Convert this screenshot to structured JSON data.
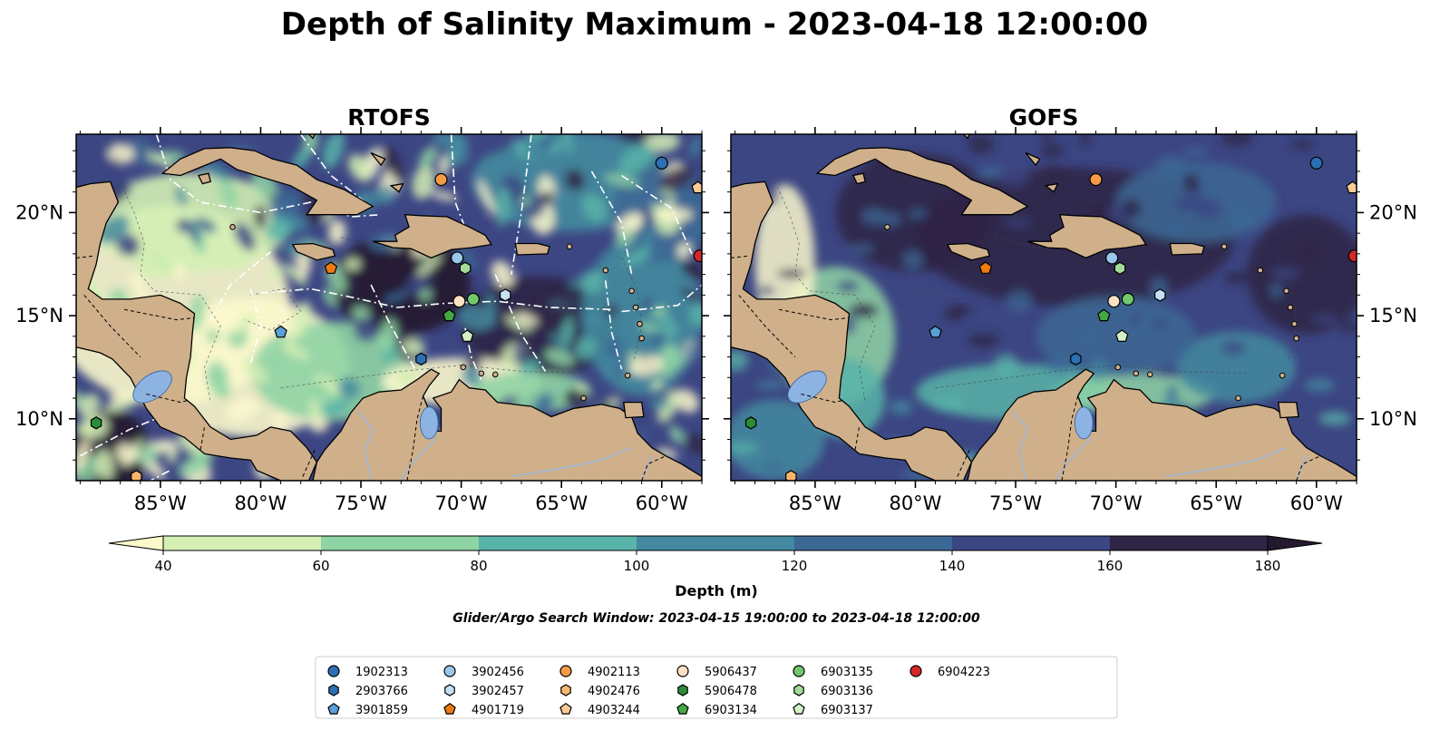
{
  "title": "Depth of Salinity Maximum - 2023-04-18 12:00:00",
  "panels": [
    {
      "name": "RTOFS",
      "style": "dark"
    },
    {
      "name": "GOFS",
      "style": "deep"
    }
  ],
  "map_extent": {
    "lon_min": -89.2,
    "lon_max": -58.0,
    "lat_min": 7.0,
    "lat_max": 23.8
  },
  "lon_ticks": [
    {
      "value": -85,
      "label": "85°W"
    },
    {
      "value": -80,
      "label": "80°W"
    },
    {
      "value": -75,
      "label": "75°W"
    },
    {
      "value": -70,
      "label": "70°W"
    },
    {
      "value": -65,
      "label": "65°W"
    },
    {
      "value": -60,
      "label": "60°W"
    }
  ],
  "lat_ticks": [
    {
      "value": 20,
      "label": "20°N"
    },
    {
      "value": 15,
      "label": "15°N"
    },
    {
      "value": 10,
      "label": "10°N"
    }
  ],
  "colorbar": {
    "label": "Depth (m)",
    "ticks": [
      "40",
      "60",
      "80",
      "100",
      "120",
      "140",
      "160",
      "180"
    ],
    "colors": [
      "#d3efb4",
      "#8fd4a4",
      "#58b4a8",
      "#43899f",
      "#3c6895",
      "#3c4683",
      "#2f2545"
    ],
    "under_color": "#fbf8cc",
    "over_color": "#231a2f"
  },
  "search_window": "Glider/Argo Search Window: 2023-04-15 19:00:00 to 2023-04-18 12:00:00",
  "colors": {
    "land": "#cfb08b",
    "lake": "#8db3e2",
    "river": "#9bb6dc",
    "coast": "#000000"
  },
  "legend": [
    {
      "id": "1902313",
      "marker": "circle",
      "color": "#2c6fb5"
    },
    {
      "id": "2903766",
      "marker": "hexagon",
      "color": "#2c6fb5"
    },
    {
      "id": "3901859",
      "marker": "pentagon",
      "color": "#5a9fd8"
    },
    {
      "id": "3902456",
      "marker": "circle",
      "color": "#9ac8eb"
    },
    {
      "id": "3902457",
      "marker": "hexagon",
      "color": "#c6e1f5"
    },
    {
      "id": "4901719",
      "marker": "pentagon",
      "color": "#ee7a12"
    },
    {
      "id": "4902113",
      "marker": "circle",
      "color": "#f59a45"
    },
    {
      "id": "4902476",
      "marker": "hexagon",
      "color": "#f8b56d"
    },
    {
      "id": "4903244",
      "marker": "pentagon",
      "color": "#fbcb95"
    },
    {
      "id": "5906437",
      "marker": "circle",
      "color": "#fde1c3"
    },
    {
      "id": "5906478",
      "marker": "hexagon",
      "color": "#2b8c38"
    },
    {
      "id": "6903134",
      "marker": "pentagon",
      "color": "#44a844"
    },
    {
      "id": "6903135",
      "marker": "circle",
      "color": "#72c66c"
    },
    {
      "id": "6903136",
      "marker": "hexagon",
      "color": "#a2dc98"
    },
    {
      "id": "6903137",
      "marker": "pentagon",
      "color": "#d2f0c4"
    },
    {
      "id": "6904223",
      "marker": "circle",
      "color": "#d62728"
    }
  ],
  "floats": [
    {
      "id": "1902313",
      "lon": -60.0,
      "lat": 22.4
    },
    {
      "id": "2903766",
      "lon": -72.0,
      "lat": 12.9
    },
    {
      "id": "3901859",
      "lon": -79.0,
      "lat": 14.2
    },
    {
      "id": "3902456",
      "lon": -70.2,
      "lat": 17.8
    },
    {
      "id": "3902457",
      "lon": -67.8,
      "lat": 16.0
    },
    {
      "id": "4901719",
      "lon": -76.5,
      "lat": 17.3
    },
    {
      "id": "4902113",
      "lon": -71.0,
      "lat": 21.6
    },
    {
      "id": "4902476",
      "lon": -86.2,
      "lat": 7.2
    },
    {
      "id": "4903244",
      "lon": -58.2,
      "lat": 21.2
    },
    {
      "id": "5906437",
      "lon": -70.1,
      "lat": 15.7
    },
    {
      "id": "5906478",
      "lon": -88.2,
      "lat": 9.8
    },
    {
      "id": "6903134",
      "lon": -70.6,
      "lat": 15.0
    },
    {
      "id": "6903135",
      "lon": -69.4,
      "lat": 15.8
    },
    {
      "id": "6903136",
      "lon": -69.8,
      "lat": 17.3
    },
    {
      "id": "6903137",
      "lon": -69.7,
      "lat": 14.0
    },
    {
      "id": "6904223",
      "lon": -58.1,
      "lat": 17.9
    }
  ]
}
